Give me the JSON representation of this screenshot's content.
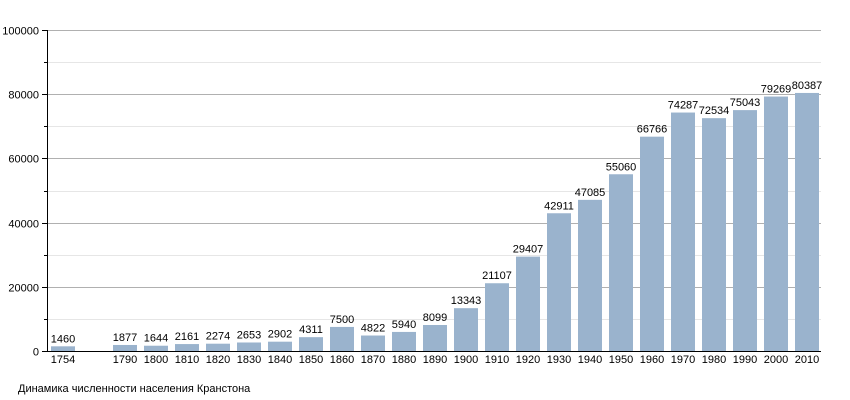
{
  "caption": "Динамика численности населения Кранстона",
  "chart_data": {
    "type": "bar",
    "categories": [
      "1754",
      "",
      "1790",
      "1800",
      "1810",
      "1820",
      "1830",
      "1840",
      "1850",
      "1860",
      "1870",
      "1880",
      "1890",
      "1900",
      "1910",
      "1920",
      "1930",
      "1940",
      "1950",
      "1960",
      "1970",
      "1980",
      "1990",
      "2000",
      "2010"
    ],
    "values": [
      1460,
      null,
      1877,
      1644,
      2161,
      2274,
      2653,
      2902,
      4311,
      7500,
      4822,
      5940,
      8099,
      13343,
      21107,
      29407,
      42911,
      47085,
      55060,
      66766,
      74287,
      72534,
      75043,
      79269,
      80387
    ],
    "data_labels": [
      "1460",
      "",
      "1877",
      "1644",
      "2161",
      "2274",
      "2653",
      "2902",
      "4311",
      "7500",
      "4822",
      "5940",
      "8099",
      "13343",
      "21107",
      "29407",
      "42911",
      "47085",
      "55060",
      "66766",
      "74287",
      "72534",
      "75043",
      "79269",
      "80387"
    ],
    "title": "",
    "xlabel": "",
    "ylabel": "",
    "ylim": [
      0,
      100000
    ],
    "yticks": [
      0,
      20000,
      40000,
      60000,
      80000,
      100000
    ],
    "ytick_labels": [
      "0",
      "20000",
      "40000",
      "60000",
      "80000",
      "100000"
    ],
    "minor_ytick_step": 10000,
    "grid": true,
    "legend": "none",
    "bar_color": "#9ab3cd",
    "grid_color": "#b0b0b0",
    "minor_grid_color": "#e6e6e6",
    "axis_color": "#000000"
  }
}
